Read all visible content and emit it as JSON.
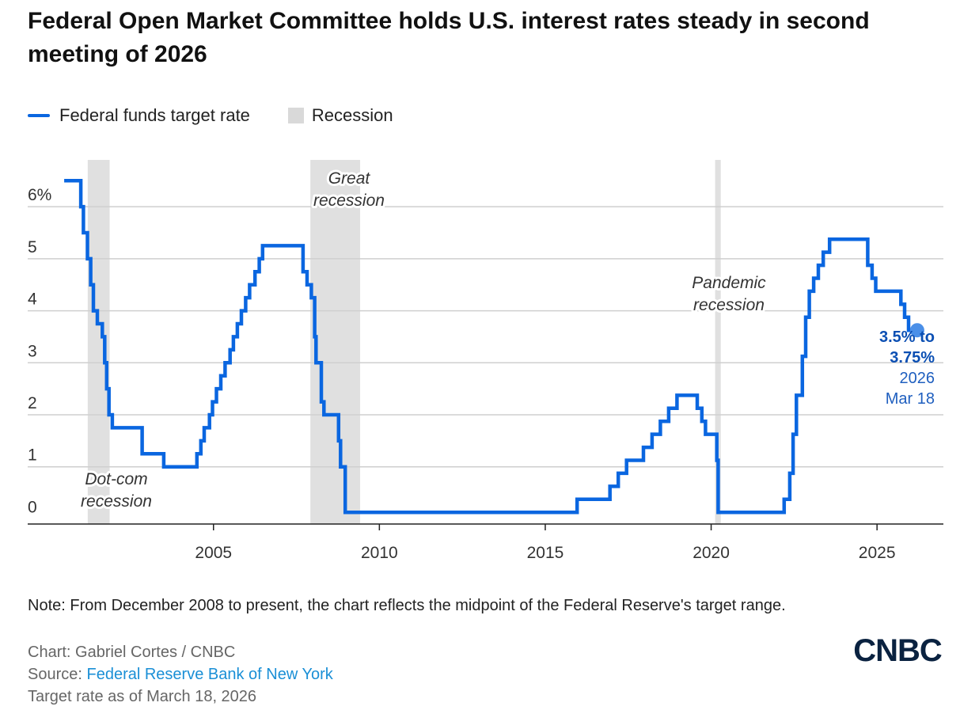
{
  "title": "Federal Open Market Committee holds U.S. interest rates steady in second meeting of 2026",
  "legend": {
    "line_label": "Federal funds target rate",
    "recession_label": "Recession"
  },
  "colors": {
    "line": "#0a66e0",
    "recession": "#e0e0e0",
    "annotation": "#0b4fb3",
    "grid": "#cfcfcf"
  },
  "note": "Note: From December 2008 to present, the chart reflects the midpoint of the Federal Reserve's target range.",
  "credit": "Chart: Gabriel Cortes / CNBC",
  "source_prefix": "Source: ",
  "source_name": "Federal Reserve Bank of New York",
  "as_of": "Target rate as of March 18, 2026",
  "logo_text": "CNBC",
  "chart_data": {
    "type": "line",
    "step": true,
    "series": [
      {
        "name": "Federal funds target rate",
        "points": [
          [
            2000.5,
            6.5
          ],
          [
            2001.0,
            6.0
          ],
          [
            2001.08,
            5.5
          ],
          [
            2001.2,
            5.0
          ],
          [
            2001.3,
            4.5
          ],
          [
            2001.38,
            4.0
          ],
          [
            2001.5,
            3.75
          ],
          [
            2001.65,
            3.5
          ],
          [
            2001.72,
            3.0
          ],
          [
            2001.78,
            2.5
          ],
          [
            2001.85,
            2.0
          ],
          [
            2001.95,
            1.75
          ],
          [
            2002.85,
            1.25
          ],
          [
            2003.5,
            1.0
          ],
          [
            2004.5,
            1.25
          ],
          [
            2004.62,
            1.5
          ],
          [
            2004.72,
            1.75
          ],
          [
            2004.88,
            2.0
          ],
          [
            2004.97,
            2.25
          ],
          [
            2005.09,
            2.5
          ],
          [
            2005.22,
            2.75
          ],
          [
            2005.35,
            3.0
          ],
          [
            2005.5,
            3.25
          ],
          [
            2005.6,
            3.5
          ],
          [
            2005.72,
            3.75
          ],
          [
            2005.84,
            4.0
          ],
          [
            2005.97,
            4.25
          ],
          [
            2006.09,
            4.5
          ],
          [
            2006.25,
            4.75
          ],
          [
            2006.38,
            5.0
          ],
          [
            2006.48,
            5.25
          ],
          [
            2007.7,
            4.75
          ],
          [
            2007.82,
            4.5
          ],
          [
            2007.95,
            4.25
          ],
          [
            2008.05,
            3.5
          ],
          [
            2008.09,
            3.0
          ],
          [
            2008.25,
            2.25
          ],
          [
            2008.33,
            2.0
          ],
          [
            2008.77,
            1.5
          ],
          [
            2008.83,
            1.0
          ],
          [
            2008.97,
            0.125
          ],
          [
            2015.96,
            0.375
          ],
          [
            2016.95,
            0.625
          ],
          [
            2017.2,
            0.875
          ],
          [
            2017.45,
            1.125
          ],
          [
            2017.96,
            1.375
          ],
          [
            2018.22,
            1.625
          ],
          [
            2018.47,
            1.875
          ],
          [
            2018.72,
            2.125
          ],
          [
            2018.97,
            2.375
          ],
          [
            2019.58,
            2.125
          ],
          [
            2019.72,
            1.875
          ],
          [
            2019.83,
            1.625
          ],
          [
            2020.17,
            1.125
          ],
          [
            2020.21,
            0.125
          ],
          [
            2022.2,
            0.375
          ],
          [
            2022.37,
            0.875
          ],
          [
            2022.47,
            1.625
          ],
          [
            2022.57,
            2.375
          ],
          [
            2022.75,
            3.125
          ],
          [
            2022.85,
            3.875
          ],
          [
            2022.96,
            4.375
          ],
          [
            2023.09,
            4.625
          ],
          [
            2023.23,
            4.875
          ],
          [
            2023.38,
            5.125
          ],
          [
            2023.57,
            5.375
          ],
          [
            2024.72,
            4.875
          ],
          [
            2024.85,
            4.625
          ],
          [
            2024.96,
            4.375
          ],
          [
            2025.72,
            4.125
          ],
          [
            2025.83,
            3.875
          ],
          [
            2025.95,
            3.625
          ],
          [
            2026.21,
            3.625
          ]
        ]
      }
    ],
    "recessions": [
      {
        "start": 2001.21,
        "end": 2001.87,
        "label_line1": "Dot-com",
        "label_line2": "recession"
      },
      {
        "start": 2007.92,
        "end": 2009.42,
        "label_line1": "Great",
        "label_line2": "recession"
      },
      {
        "start": 2020.12,
        "end": 2020.29,
        "label_line1": "Pandemic",
        "label_line2": "recession"
      }
    ],
    "xlim": [
      1999.4,
      2027.0
    ],
    "ylim": [
      -0.1,
      6.9
    ],
    "x_ticks": [
      2005,
      2010,
      2015,
      2020,
      2025
    ],
    "x_tick_labels": [
      "2005",
      "2010",
      "2015",
      "2020",
      "2025"
    ],
    "y_ticks": [
      0,
      1,
      2,
      3,
      4,
      5,
      6
    ],
    "y_tick_labels": [
      "0",
      "1",
      "2",
      "3",
      "4",
      "5",
      "6%"
    ],
    "endpoint": {
      "x": 2026.21,
      "y": 3.625,
      "label_line1": "3.5% to",
      "label_line2": "3.75%",
      "label_line3": "2026",
      "label_line4": "Mar 18"
    }
  }
}
